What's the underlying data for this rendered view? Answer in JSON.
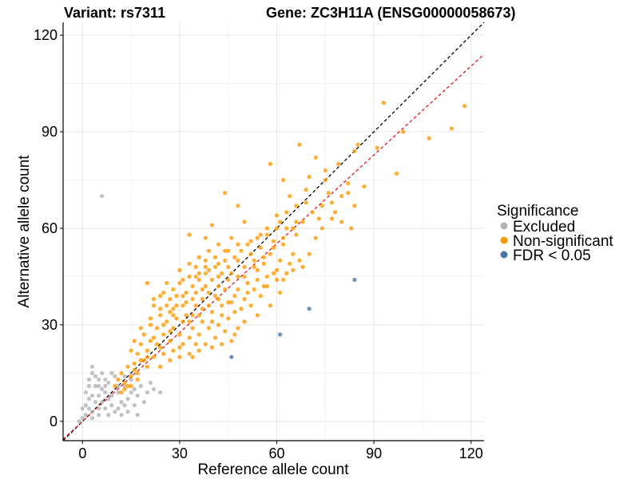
{
  "chart_data": {
    "type": "scatter",
    "title_left": "Variant: rs7311",
    "title_right": "Gene: ZC3H11A (ENSG00000058673)",
    "xlabel": "Reference allele count",
    "ylabel": "Alternative allele count",
    "xlim": [
      -6,
      124
    ],
    "ylim": [
      -6,
      124
    ],
    "xticks": [
      0,
      30,
      60,
      90,
      120
    ],
    "yticks": [
      0,
      30,
      60,
      90,
      120
    ],
    "legend": {
      "title": "Significance",
      "position": "right",
      "entries": [
        {
          "name": "Excluded",
          "color": "#b3b3b3"
        },
        {
          "name": "Non-significant",
          "color": "#ff9900"
        },
        {
          "name": "FDR < 0.05",
          "color": "#4a78a8"
        }
      ]
    },
    "reference_lines": [
      {
        "name": "identity",
        "slope": 1.0,
        "intercept": 0,
        "color": "#000000",
        "style": "dashed"
      },
      {
        "name": "fit",
        "slope": 0.92,
        "intercept": 0,
        "color": "#e41a1c",
        "style": "dashed"
      }
    ],
    "series": [
      {
        "name": "Excluded",
        "color": "#b3b3b3",
        "points": [
          [
            6,
            70
          ],
          [
            3,
            17
          ],
          [
            3,
            15
          ],
          [
            5,
            13
          ],
          [
            2,
            11
          ],
          [
            4,
            11
          ],
          [
            6,
            10
          ],
          [
            1,
            9
          ],
          [
            3,
            8
          ],
          [
            5,
            8
          ],
          [
            7,
            9
          ],
          [
            2,
            7
          ],
          [
            4,
            6
          ],
          [
            6,
            6
          ],
          [
            8,
            7
          ],
          [
            9,
            5
          ],
          [
            0,
            4
          ],
          [
            2,
            4
          ],
          [
            3,
            3
          ],
          [
            5,
            4
          ],
          [
            7,
            4
          ],
          [
            1,
            2
          ],
          [
            3,
            1
          ],
          [
            5,
            2
          ],
          [
            8,
            2
          ],
          [
            10,
            3
          ],
          [
            12,
            2
          ],
          [
            11,
            4
          ],
          [
            13,
            5
          ],
          [
            9,
            8
          ],
          [
            11,
            9
          ],
          [
            14,
            7
          ],
          [
            15,
            9
          ],
          [
            13,
            11
          ],
          [
            16,
            10
          ],
          [
            18,
            11
          ],
          [
            17,
            8
          ],
          [
            20,
            9
          ],
          [
            22,
            10
          ],
          [
            21,
            12
          ],
          [
            24,
            9
          ],
          [
            8,
            12
          ],
          [
            10,
            14
          ],
          [
            6,
            15
          ],
          [
            4,
            14
          ],
          [
            12,
            6
          ],
          [
            14,
            3
          ],
          [
            16,
            5
          ],
          [
            17,
            2
          ],
          [
            19,
            6
          ],
          [
            7,
            13
          ],
          [
            9,
            15
          ],
          [
            2,
            13
          ],
          [
            0,
            1
          ],
          [
            -1,
            0
          ],
          [
            1,
            5
          ],
          [
            15,
            13
          ],
          [
            13,
            14
          ],
          [
            11,
            11
          ],
          [
            7,
            11
          ],
          [
            5,
            11
          ]
        ]
      },
      {
        "name": "Non-significant",
        "color": "#ff9900",
        "points": [
          [
            93,
            99
          ],
          [
            118,
            98
          ],
          [
            114,
            91
          ],
          [
            107,
            88
          ],
          [
            97,
            77
          ],
          [
            99,
            90
          ],
          [
            84,
            84
          ],
          [
            91,
            85
          ],
          [
            85,
            86
          ],
          [
            79,
            80
          ],
          [
            72,
            82
          ],
          [
            67,
            86
          ],
          [
            75,
            78
          ],
          [
            70,
            76
          ],
          [
            76,
            71
          ],
          [
            80,
            70
          ],
          [
            82,
            74
          ],
          [
            87,
            73
          ],
          [
            78,
            65
          ],
          [
            83,
            60
          ],
          [
            84,
            67
          ],
          [
            73,
            63
          ],
          [
            69,
            68
          ],
          [
            62,
            75
          ],
          [
            58,
            80
          ],
          [
            64,
            70
          ],
          [
            60,
            64
          ],
          [
            57,
            60
          ],
          [
            59,
            56
          ],
          [
            55,
            58
          ],
          [
            52,
            56
          ],
          [
            50,
            62
          ],
          [
            48,
            67
          ],
          [
            44,
            71
          ],
          [
            40,
            61
          ],
          [
            33,
            58
          ],
          [
            38,
            57
          ],
          [
            46,
            57
          ],
          [
            62,
            55
          ],
          [
            65,
            52
          ],
          [
            66,
            58
          ],
          [
            68,
            48
          ],
          [
            63,
            46
          ],
          [
            60,
            44
          ],
          [
            56,
            49
          ],
          [
            54,
            47
          ],
          [
            50,
            48
          ],
          [
            47,
            51
          ],
          [
            44,
            50
          ],
          [
            41,
            48
          ],
          [
            38,
            46
          ],
          [
            36,
            44
          ],
          [
            34,
            42
          ],
          [
            31,
            44
          ],
          [
            28,
            41
          ],
          [
            26,
            43
          ],
          [
            20,
            43
          ],
          [
            24,
            39
          ],
          [
            22,
            36
          ],
          [
            27,
            34
          ],
          [
            29,
            32
          ],
          [
            32,
            33
          ],
          [
            35,
            36
          ],
          [
            37,
            38
          ],
          [
            39,
            40
          ],
          [
            42,
            42
          ],
          [
            45,
            44
          ],
          [
            48,
            45
          ],
          [
            51,
            43
          ],
          [
            53,
            41
          ],
          [
            55,
            39
          ],
          [
            57,
            42
          ],
          [
            61,
            40
          ],
          [
            58,
            36
          ],
          [
            54,
            33
          ],
          [
            50,
            31
          ],
          [
            47,
            34
          ],
          [
            43,
            36
          ],
          [
            40,
            34
          ],
          [
            37,
            31
          ],
          [
            34,
            29
          ],
          [
            30,
            27
          ],
          [
            27,
            25
          ],
          [
            24,
            23
          ],
          [
            21,
            25
          ],
          [
            18,
            24
          ],
          [
            17,
            21
          ],
          [
            19,
            19
          ],
          [
            22,
            20
          ],
          [
            25,
            21
          ],
          [
            28,
            22
          ],
          [
            31,
            24
          ],
          [
            33,
            26
          ],
          [
            36,
            27
          ],
          [
            39,
            29
          ],
          [
            42,
            30
          ],
          [
            45,
            32
          ],
          [
            48,
            29
          ],
          [
            46,
            25
          ],
          [
            43,
            24
          ],
          [
            40,
            23
          ],
          [
            36,
            22
          ],
          [
            33,
            21
          ],
          [
            30,
            20
          ],
          [
            27,
            19
          ],
          [
            24,
            17
          ],
          [
            20,
            17
          ],
          [
            17,
            15
          ],
          [
            15,
            14
          ],
          [
            13,
            12
          ],
          [
            11,
            13
          ],
          [
            14,
            11
          ],
          [
            16,
            18
          ],
          [
            19,
            27
          ],
          [
            23,
            29
          ],
          [
            26,
            31
          ],
          [
            29,
            36
          ],
          [
            32,
            37
          ],
          [
            35,
            40
          ],
          [
            38,
            42
          ],
          [
            41,
            39
          ],
          [
            44,
            41
          ],
          [
            47,
            39
          ],
          [
            50,
            38
          ],
          [
            52,
            36
          ],
          [
            49,
            35
          ],
          [
            46,
            37
          ],
          [
            43,
            33
          ],
          [
            40,
            31
          ],
          [
            37,
            35
          ],
          [
            34,
            33
          ],
          [
            31,
            31
          ],
          [
            28,
            29
          ],
          [
            25,
            27
          ],
          [
            22,
            26
          ],
          [
            20,
            22
          ],
          [
            18,
            19
          ],
          [
            16,
            16
          ],
          [
            14,
            17
          ],
          [
            12,
            15
          ],
          [
            10,
            11
          ],
          [
            21,
            30
          ],
          [
            24,
            33
          ],
          [
            26,
            36
          ],
          [
            29,
            39
          ],
          [
            32,
            40
          ],
          [
            35,
            45
          ],
          [
            38,
            48
          ],
          [
            41,
            51
          ],
          [
            44,
            53
          ],
          [
            42,
            55
          ],
          [
            39,
            53
          ],
          [
            36,
            51
          ],
          [
            33,
            49
          ],
          [
            30,
            47
          ],
          [
            52,
            52
          ],
          [
            55,
            54
          ],
          [
            58,
            52
          ],
          [
            61,
            50
          ],
          [
            64,
            49
          ],
          [
            60,
            47
          ],
          [
            57,
            45
          ],
          [
            53,
            50
          ],
          [
            49,
            53
          ],
          [
            46,
            46
          ],
          [
            43,
            46
          ],
          [
            40,
            44
          ],
          [
            37,
            41
          ],
          [
            34,
            38
          ],
          [
            31,
            36
          ],
          [
            28,
            33
          ],
          [
            25,
            30
          ],
          [
            23,
            24
          ],
          [
            20,
            20
          ],
          [
            17,
            13
          ],
          [
            15,
            11
          ],
          [
            13,
            10
          ],
          [
            12,
            9
          ],
          [
            34,
            20
          ],
          [
            38,
            24
          ],
          [
            41,
            26
          ],
          [
            44,
            28
          ],
          [
            47,
            27
          ],
          [
            35,
            24
          ],
          [
            30,
            23
          ],
          [
            27,
            28
          ],
          [
            33,
            31
          ],
          [
            36,
            33
          ],
          [
            39,
            36
          ],
          [
            42,
            38
          ],
          [
            45,
            37
          ],
          [
            48,
            41
          ],
          [
            51,
            40
          ],
          [
            54,
            44
          ],
          [
            56,
            42
          ],
          [
            59,
            46
          ],
          [
            62,
            44
          ],
          [
            65,
            47
          ],
          [
            67,
            50
          ],
          [
            70,
            52
          ],
          [
            72,
            57
          ],
          [
            74,
            60
          ],
          [
            77,
            63
          ],
          [
            80,
            62
          ],
          [
            66,
            62
          ],
          [
            63,
            60
          ],
          [
            60,
            60
          ],
          [
            57,
            58
          ],
          [
            54,
            57
          ],
          [
            51,
            55
          ],
          [
            48,
            55
          ],
          [
            45,
            53
          ],
          [
            42,
            49
          ],
          [
            39,
            47
          ],
          [
            36,
            46
          ],
          [
            33,
            45
          ],
          [
            30,
            43
          ],
          [
            27,
            38
          ],
          [
            24,
            35
          ],
          [
            21,
            32
          ],
          [
            18,
            29
          ],
          [
            16,
            25
          ],
          [
            15,
            22
          ],
          [
            22,
            38
          ],
          [
            25,
            40
          ],
          [
            28,
            35
          ],
          [
            31,
            39
          ],
          [
            35,
            48
          ],
          [
            38,
            50
          ],
          [
            42,
            45
          ],
          [
            45,
            48
          ],
          [
            48,
            50
          ],
          [
            50,
            45
          ],
          [
            53,
            48
          ],
          [
            56,
            51
          ],
          [
            59,
            54
          ],
          [
            62,
            57
          ],
          [
            65,
            60
          ],
          [
            68,
            62
          ],
          [
            71,
            65
          ],
          [
            74,
            67
          ],
          [
            77,
            68
          ],
          [
            82,
            71
          ],
          [
            75,
            75
          ],
          [
            69,
            72
          ],
          [
            66,
            67
          ],
          [
            63,
            65
          ],
          [
            61,
            62
          ]
        ]
      },
      {
        "name": "FDR < 0.05",
        "color": "#4a78a8",
        "points": [
          [
            84,
            44
          ],
          [
            70,
            35
          ],
          [
            61,
            27
          ],
          [
            46,
            20
          ]
        ]
      }
    ]
  }
}
